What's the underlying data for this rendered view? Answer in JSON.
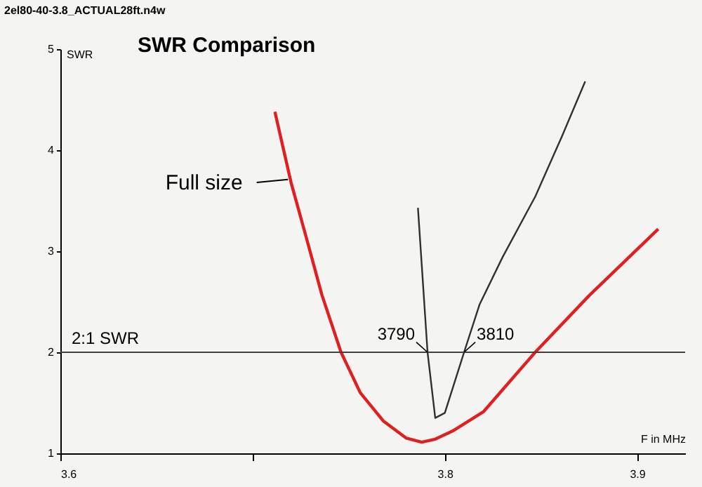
{
  "chart_data": {
    "type": "line",
    "title": "SWR Comparison",
    "xlabel": "F in MHz",
    "ylabel": "SWR",
    "xlim": [
      3.6,
      3.925
    ],
    "xticks": [
      3.6,
      {
        "value": 3.7,
        "label": null
      },
      3.8,
      3.9
    ],
    "ylim": [
      1,
      5
    ],
    "yticks": [
      1,
      2,
      3,
      4,
      5
    ],
    "grid": false,
    "marker": "none",
    "line_style": "solid",
    "series": [
      {
        "name": "Full size",
        "color": "#e02020",
        "x": [
          3.7116,
          3.72,
          3.728,
          3.736,
          3.746,
          3.756,
          3.768,
          3.78,
          3.788,
          3.795,
          3.804,
          3.82,
          3.847,
          3.875,
          3.911
        ],
        "values": [
          4.38,
          3.68,
          3.13,
          2.57,
          2.0,
          1.6,
          1.32,
          1.15,
          1.11,
          1.14,
          1.22,
          1.41,
          2.0,
          2.56,
          3.22
        ]
      },
      {
        "color": "#303030",
        "x": [
          3.786,
          3.791,
          3.795,
          3.8,
          3.81,
          3.818,
          3.83,
          3.847,
          3.861,
          3.873
        ],
        "values": [
          3.43,
          2.0,
          1.35,
          1.4,
          2.0,
          2.47,
          2.94,
          3.54,
          4.14,
          4.68
        ]
      }
    ],
    "ref_lines": [
      {
        "axis": "y",
        "value": 2,
        "label": "2:1 SWR",
        "color": "#404040",
        "line_style": "solid"
      }
    ],
    "annotations": [
      "2el80-40-3.8_ACTUAL28ft.n4w",
      {
        "text": "3790",
        "x": 3.791,
        "y": 2
      },
      {
        "text": "3810",
        "x": 3.81,
        "y": 2
      }
    ]
  }
}
